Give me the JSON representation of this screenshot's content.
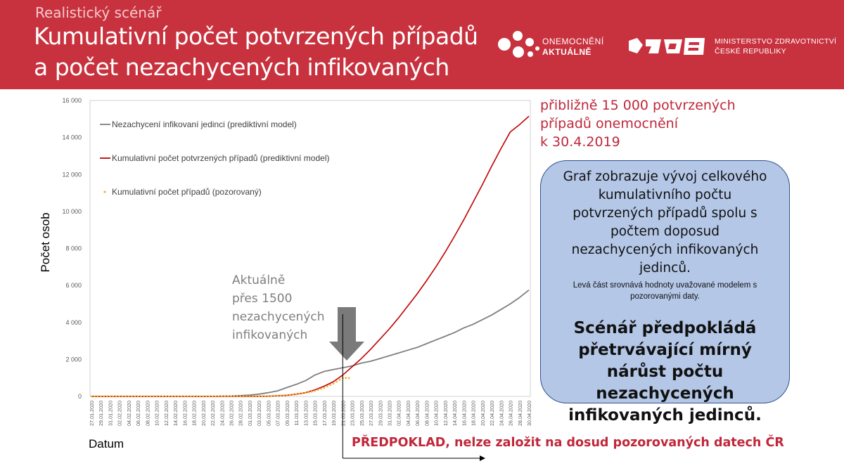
{
  "header": {
    "supertitle": "Realistický scénář",
    "title_line1": "Kumulativní počet potvrzených případů",
    "title_line2": "a počet nezachycených infikovaných",
    "logo1_line1": "ONEMOCNĚNÍ",
    "logo1_line2": "AKTUÁLNĚ",
    "logo2_line1": "MINISTERSTVO ZDRAVOTNICTVÍ",
    "logo2_line2": "ČESKÉ REPUBLIKY"
  },
  "annotations": {
    "top_right_line1": "přibližně 15 000 potvrzených",
    "top_right_line2": "případů onemocnění",
    "top_right_line3": "k 30.4.2019",
    "current_line1": "Aktuálně",
    "current_line2": "přes 1500",
    "current_line3": "nezachycených",
    "current_line4": "infikovaných",
    "assumption": "PŘEDPOKLAD, nelze založit na dosud pozorovaných datech ČR"
  },
  "infobox": {
    "p1": "Graf zobrazuje vývoj celkového kumulativního počtu potvrzených případů spolu s počtem doposud nezachycených infikovaných jedinců.",
    "p2": "Levá část srovnává hodnoty uvažované modelem s pozorovanými daty.",
    "p3": "Scénář předpokládá přetrvávající mírný nárůst počtu nezachycených infikovaných jedinců."
  },
  "colors": {
    "header_bg": "#c8323e",
    "undetected": "#7f7f7f",
    "confirmed_model": "#c00000",
    "observed": "#f5b335",
    "annotation_red": "#c0273a",
    "infobox_bg": "#b4c7e7"
  },
  "chart_data": {
    "type": "line",
    "ylabel": "Počet osob",
    "xlabel": "Datum",
    "ylim": [
      0,
      16000
    ],
    "yticks": [
      0,
      2000,
      4000,
      6000,
      8000,
      10000,
      12000,
      14000,
      16000
    ],
    "ytick_labels": [
      "0",
      "2 000",
      "4 000",
      "6 000",
      "8 000",
      "10 000",
      "12 000",
      "14 000",
      "16 000"
    ],
    "grid": false,
    "legend_position": "top-left",
    "x_labels": [
      "27.01.2020",
      "29.01.2020",
      "31.01.2020",
      "02.02.2020",
      "04.02.2020",
      "06.02.2020",
      "08.02.2020",
      "10.02.2020",
      "12.02.2020",
      "14.02.2020",
      "16.02.2020",
      "18.02.2020",
      "20.02.2020",
      "22.02.2020",
      "24.02.2020",
      "26.02.2020",
      "28.02.2020",
      "01.03.2020",
      "03.03.2020",
      "05.03.2020",
      "07.03.2020",
      "09.03.2020",
      "11.03.2020",
      "13.03.2020",
      "15.03.2020",
      "17.03.2020",
      "19.03.2020",
      "21.03.2020",
      "23.03.2020",
      "25.03.2020",
      "27.03.2020",
      "29.03.2020",
      "31.03.2020",
      "02.04.2020",
      "04.04.2020",
      "06.04.2020",
      "08.04.2020",
      "10.04.2020",
      "12.04.2020",
      "14.04.2020",
      "16.04.2020",
      "18.04.2020",
      "20.04.2020",
      "22.04.2020",
      "24.04.2020",
      "26.04.2020",
      "28.04.2020",
      "30.04.2020"
    ],
    "series": [
      {
        "name": "Nezachycení infikovaní jedinci (prediktivní model)",
        "style": "line",
        "values": [
          0,
          0,
          0,
          0,
          0,
          0,
          0,
          0,
          0,
          0,
          0,
          0,
          0,
          0,
          10,
          20,
          40,
          70,
          120,
          200,
          300,
          480,
          650,
          850,
          1150,
          1350,
          1450,
          1550,
          1650,
          1800,
          1900,
          2050,
          2200,
          2350,
          2500,
          2650,
          2850,
          3050,
          3250,
          3450,
          3700,
          3900,
          4150,
          4400,
          4700,
          5000,
          5350,
          5750
        ]
      },
      {
        "name": "Kumulativní počet potvrzených případů (prediktivní model)",
        "style": "line",
        "values": [
          0,
          0,
          0,
          0,
          0,
          0,
          0,
          0,
          0,
          0,
          0,
          0,
          0,
          0,
          0,
          0,
          0,
          3,
          5,
          12,
          30,
          60,
          120,
          200,
          350,
          550,
          800,
          1150,
          1600,
          2050,
          2550,
          3100,
          3650,
          4250,
          4900,
          5550,
          6250,
          7000,
          7800,
          8650,
          9550,
          10500,
          11450,
          12450,
          13400,
          14300,
          14700,
          15150
        ]
      },
      {
        "name": "Kumulativní počet případů (pozorovaný)",
        "style": "markers",
        "values": [
          0,
          0,
          0,
          0,
          0,
          0,
          0,
          0,
          0,
          0,
          0,
          0,
          0,
          0,
          0,
          0,
          0,
          3,
          5,
          12,
          31,
          63,
          116,
          189,
          298,
          464,
          694,
          995,
          null,
          null,
          null,
          null,
          null,
          null,
          null,
          null,
          null,
          null,
          null,
          null,
          null,
          null,
          null,
          null,
          null,
          null,
          null,
          null
        ]
      }
    ]
  }
}
